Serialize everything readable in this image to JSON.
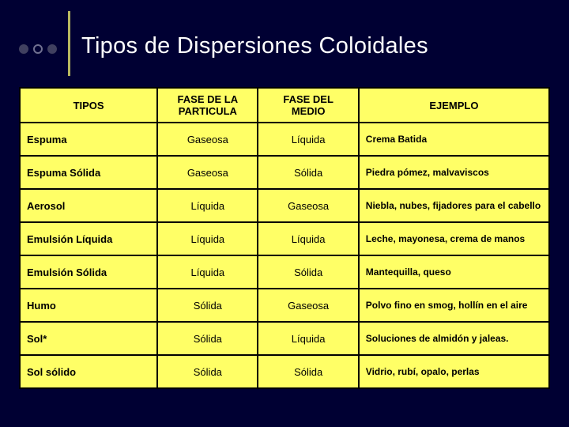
{
  "title": "Tipos de Dispersiones Coloidales",
  "columns": [
    "TIPOS",
    "FASE DE LA PARTICULA",
    "FASE DEL MEDIO",
    "EJEMPLO"
  ],
  "rows": [
    {
      "tipo": "Espuma",
      "fp": "Gaseosa",
      "fm": "Líquida",
      "ej": "Crema Batida"
    },
    {
      "tipo": "Espuma Sólida",
      "fp": "Gaseosa",
      "fm": "Sólida",
      "ej": "Piedra pómez, malvaviscos"
    },
    {
      "tipo": "Aerosol",
      "fp": "Líquida",
      "fm": "Gaseosa",
      "ej": "Niebla, nubes, fijadores para el cabello"
    },
    {
      "tipo": "Emulsión Líquida",
      "fp": "Líquida",
      "fm": "Líquida",
      "ej": "Leche, mayonesa, crema de manos"
    },
    {
      "tipo": "Emulsión Sólida",
      "fp": "Líquida",
      "fm": "Sólida",
      "ej": "Mantequilla, queso"
    },
    {
      "tipo": "Humo",
      "fp": "Sólida",
      "fm": "Gaseosa",
      "ej": "Polvo fino en smog, hollín en el aire"
    },
    {
      "tipo": "Sol*",
      "fp": "Sólida",
      "fm": "Líquida",
      "ej": "Soluciones de almidón y jaleas."
    },
    {
      "tipo": "Sol sólido",
      "fp": "Sólida",
      "fm": "Sólida",
      "ej": "Vidrio, rubí, opalo, perlas"
    }
  ],
  "style": {
    "page_bg": "#000033",
    "title_color": "#ffffff",
    "title_fontsize": 29,
    "cell_bg": "#ffff66",
    "cell_border": "#000000",
    "accent_line_color": "#b8b860",
    "bullet_solid_color": "#404060",
    "bullet_hollow_color": "#707090",
    "header_fontsize": 13,
    "body_fontsize": 13,
    "example_fontsize": 12,
    "col_widths_pct": [
      26,
      19,
      19,
      36
    ]
  }
}
